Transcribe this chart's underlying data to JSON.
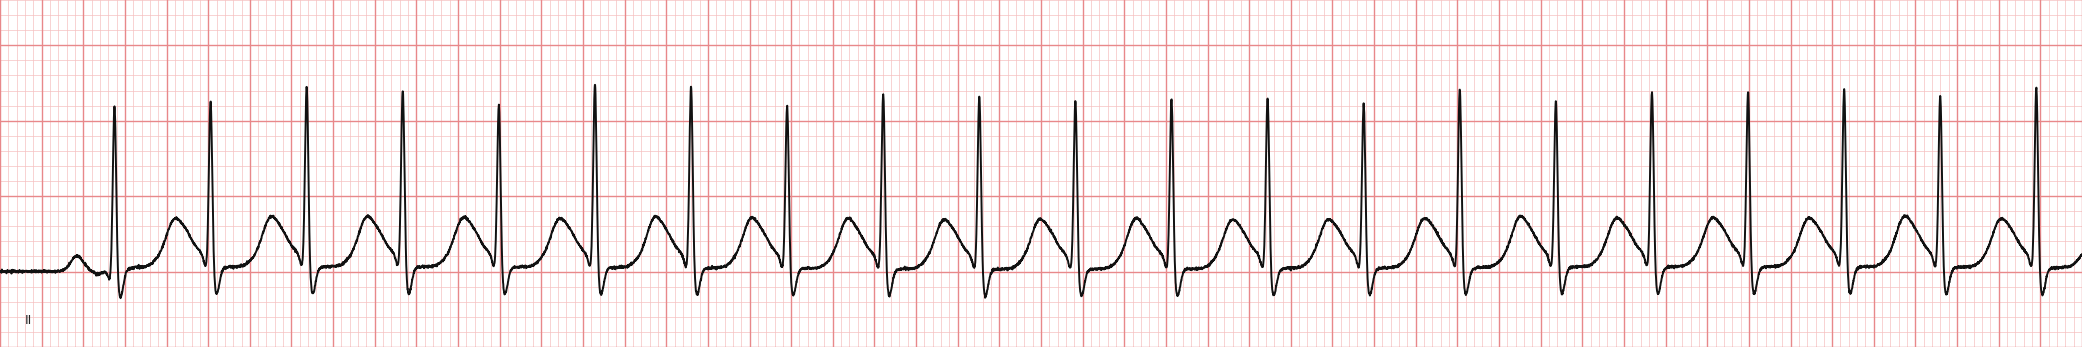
{
  "fig_width": 20.82,
  "fig_height": 3.47,
  "dpi": 100,
  "bg_color": "#FFFFFF",
  "grid_major_color": "#E8888A",
  "grid_minor_color": "#F5C0C0",
  "ecg_color": "#111111",
  "ecg_linewidth": 1.4,
  "lead_label": "II",
  "heart_rate_bpm": 130,
  "duration_seconds": 10,
  "sample_rate": 1000,
  "grid_major_spacing_x": 0.2,
  "grid_minor_spacing_x": 0.04,
  "ylim": [
    -0.5,
    1.8
  ],
  "xlim": [
    0,
    10
  ]
}
